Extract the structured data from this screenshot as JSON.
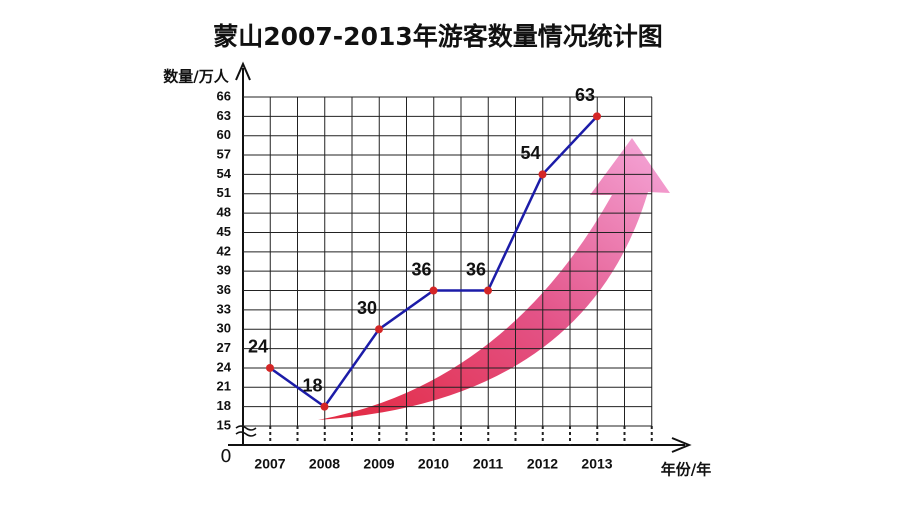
{
  "chart_data": {
    "type": "line",
    "title": "蒙山2007-2013年游客数量情况统计图",
    "y_label": "数量/万人",
    "x_label": "年份/年",
    "origin": 0,
    "categories": [
      "2007",
      "2008",
      "2009",
      "2010",
      "2011",
      "2012",
      "2013"
    ],
    "values": [
      24,
      18,
      30,
      36,
      36,
      54,
      63
    ],
    "color": "#1c1ca8",
    "marker_color": "#d42626",
    "ylim": [
      15,
      66
    ],
    "yticks": [
      15,
      18,
      21,
      24,
      27,
      30,
      33,
      36,
      39,
      42,
      45,
      48,
      51,
      54,
      57,
      60,
      63,
      66
    ],
    "grid": true
  }
}
